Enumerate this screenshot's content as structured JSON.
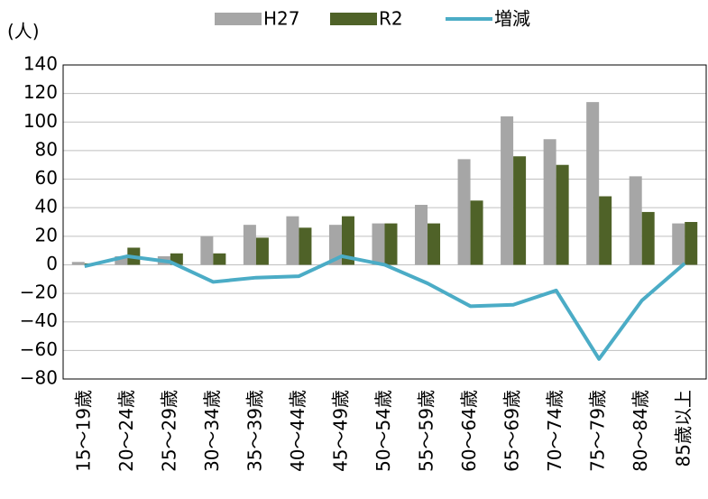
{
  "chart_data": {
    "type": "bar-line",
    "y_label": "(人)",
    "categories": [
      "15～19歳",
      "20～24歳",
      "25～29歳",
      "30～34歳",
      "35～39歳",
      "40～44歳",
      "45～49歳",
      "50～54歳",
      "55～59歳",
      "60～64歳",
      "65～69歳",
      "70～74歳",
      "75～79歳",
      "80～84歳",
      "85歳以上"
    ],
    "series": [
      {
        "name": "H27",
        "color": "#a6a6a6",
        "kind": "bar",
        "values": [
          2,
          6,
          6,
          20,
          28,
          34,
          28,
          29,
          42,
          74,
          104,
          88,
          114,
          62,
          29
        ]
      },
      {
        "name": "R2",
        "color": "#4f6228",
        "kind": "bar",
        "values": [
          1,
          12,
          8,
          8,
          19,
          26,
          34,
          29,
          29,
          45,
          76,
          70,
          48,
          37,
          30
        ]
      },
      {
        "name": "増減",
        "color": "#4bacc6",
        "kind": "line",
        "values": [
          -1,
          6,
          2,
          -12,
          -9,
          -8,
          6,
          0,
          -13,
          -29,
          -28,
          -18,
          -66,
          -25,
          1
        ]
      }
    ],
    "ylim": [
      -80,
      140
    ],
    "yticks": [
      {
        "value": -80,
        "label": "−80"
      },
      {
        "value": -60,
        "label": "−60"
      },
      {
        "value": -40,
        "label": "−40"
      },
      {
        "value": -20,
        "label": "−20"
      },
      0,
      20,
      40,
      60,
      80,
      100,
      120,
      140
    ],
    "grid": true,
    "legend": "top"
  }
}
